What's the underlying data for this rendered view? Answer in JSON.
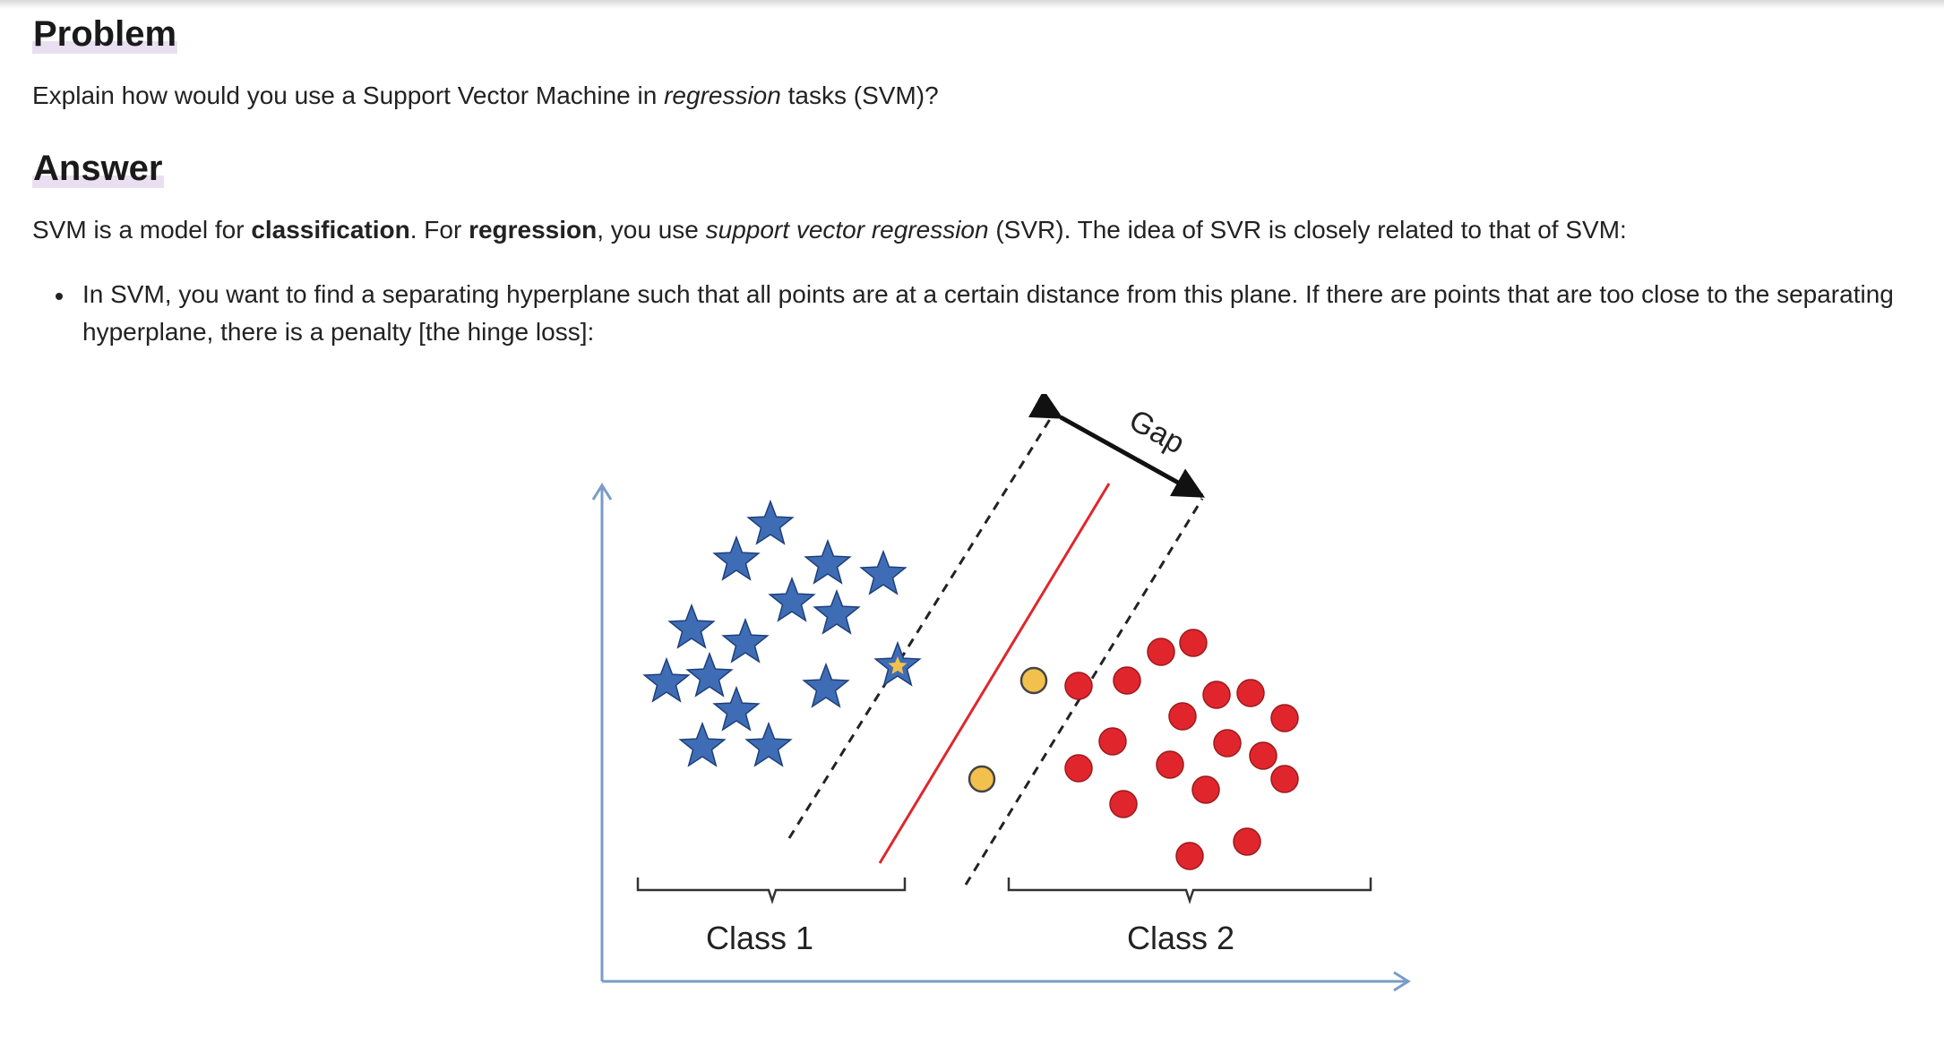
{
  "problem": {
    "heading": "Problem",
    "text_before": "Explain how would you use a Support Vector Machine in ",
    "text_italic": "regression",
    "text_after": " tasks (SVM)?"
  },
  "answer": {
    "heading": "Answer",
    "p1_a": "SVM is a model for ",
    "p1_b": "classification",
    "p1_c": ". For ",
    "p1_d": "regression",
    "p1_e": ", you use ",
    "p1_f": "support vector regression",
    "p1_g": " (SVR). The idea of SVR is closely related to that of SVM:",
    "bullets": [
      "In SVM, you want to find a separating hyperplane such that all points are at a certain distance from this plane. If there are points that are too close to the separating hyperplane, there is a penalty [the hinge loss]:"
    ]
  },
  "figure": {
    "gap_label": "Gap",
    "class1_label": "Class 1",
    "class2_label": "Class 2",
    "colors": {
      "axis": "#7a9cc6",
      "star": "#3f6db5",
      "star_border": "#1e3f7a",
      "circle": "#e0262c",
      "support_circle": "#f2c04c",
      "support_star_center": "#f2c04c",
      "hyperplane": "#e0262c",
      "margin_line": "#222222"
    }
  }
}
